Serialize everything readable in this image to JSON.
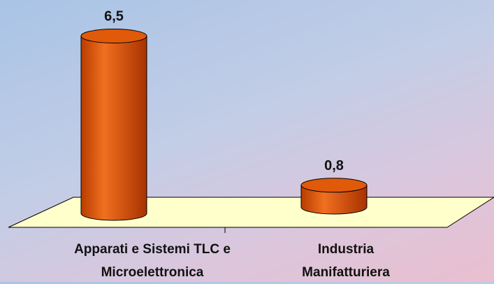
{
  "chart_data": {
    "type": "bar",
    "categories": [
      "Apparati e Sistemi TLC e Microelettronica",
      "Industria Manifatturiera"
    ],
    "values": [
      6.5,
      0.8
    ],
    "value_labels": [
      "6,5",
      "0,8"
    ],
    "color": "#e05a0a",
    "floor_color": "#ffffcc"
  }
}
